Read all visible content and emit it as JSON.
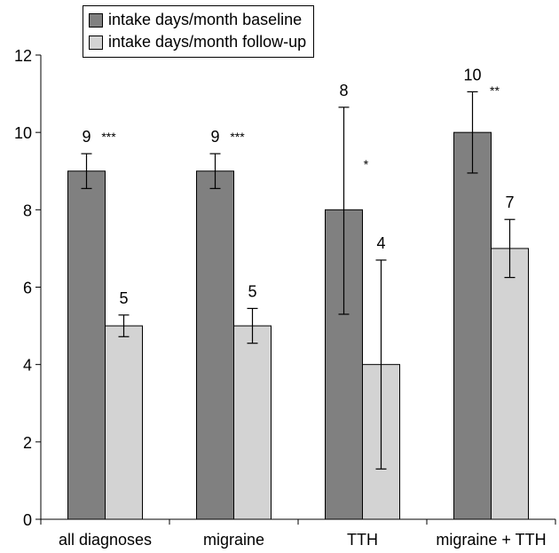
{
  "chart_data": {
    "type": "bar",
    "categories": [
      "all diagnoses",
      "migraine",
      "TTH",
      "migraine + TTH"
    ],
    "series": [
      {
        "name": "intake days/month baseline",
        "color": "#808080",
        "values": [
          9,
          9,
          8,
          10
        ],
        "error_low": [
          8.55,
          8.55,
          5.3,
          8.95
        ],
        "error_high": [
          9.45,
          9.45,
          10.65,
          11.05
        ],
        "labels": [
          "9",
          "9",
          "8",
          "10"
        ]
      },
      {
        "name": "intake days/month follow-up",
        "color": "#d3d3d3",
        "values": [
          5,
          5,
          4,
          7
        ],
        "error_low": [
          4.72,
          4.55,
          1.3,
          6.25
        ],
        "error_high": [
          5.28,
          5.45,
          6.7,
          7.75
        ],
        "labels": [
          "5",
          "5",
          "4",
          "7"
        ]
      }
    ],
    "significance": [
      "***",
      "***",
      "*",
      "**"
    ],
    "ylim": [
      0,
      12
    ],
    "yticks": [
      0,
      2,
      4,
      6,
      8,
      10,
      12
    ],
    "xlabel": "",
    "ylabel": "",
    "title": "",
    "grid": false,
    "legend_position": "top-left"
  }
}
